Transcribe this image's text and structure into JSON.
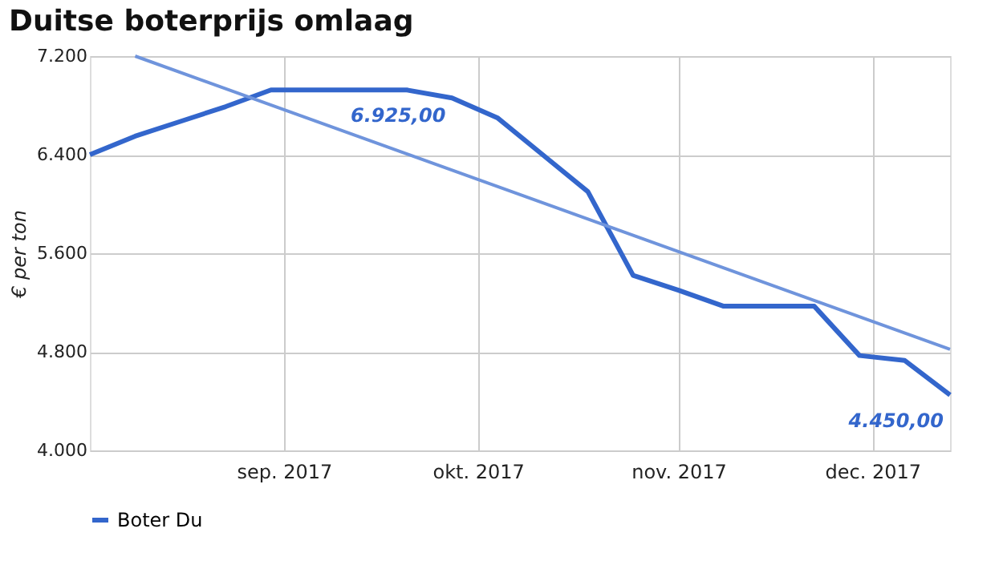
{
  "chart_data": {
    "type": "line",
    "title": "Duitse boterprijs omlaag",
    "ylabel": "€ per ton",
    "x": [
      "2017-08-02",
      "2017-08-09",
      "2017-08-16",
      "2017-08-23",
      "2017-08-30",
      "2017-09-06",
      "2017-09-13",
      "2017-09-20",
      "2017-09-27",
      "2017-10-04",
      "2017-10-11",
      "2017-10-18",
      "2017-10-25",
      "2017-11-01",
      "2017-11-08",
      "2017-11-15",
      "2017-11-22",
      "2017-11-29",
      "2017-12-06",
      "2017-12-13"
    ],
    "series": [
      {
        "name": "Boter Du",
        "color": "#3366cc",
        "values": [
          6400,
          6550,
          6670,
          6790,
          6925,
          6925,
          6925,
          6925,
          6860,
          6700,
          6400,
          6100,
          5420,
          5300,
          5170,
          5170,
          5170,
          4770,
          4730,
          4450
        ]
      },
      {
        "type": "line",
        "color": "#6f94dc",
        "x": [
          "2017-08-09",
          "2017-12-13"
        ],
        "values": [
          7200,
          4820
        ]
      }
    ],
    "annotations": [
      {
        "text": "6.925,00",
        "x": "2017-09-27",
        "y": 6925
      },
      {
        "text": "4.450,00",
        "x": "2017-12-13",
        "y": 4450
      }
    ],
    "xlim": [
      "2017-08-02",
      "2017-12-13"
    ],
    "xticks": [
      {
        "value": "2017-09-01",
        "label": "sep. 2017"
      },
      {
        "value": "2017-10-01",
        "label": "okt. 2017"
      },
      {
        "value": "2017-11-01",
        "label": "nov. 2017"
      },
      {
        "value": "2017-12-01",
        "label": "dec. 2017"
      }
    ],
    "ylim": [
      4000,
      7200
    ],
    "yticks": [
      {
        "value": 4000,
        "label": "4.000"
      },
      {
        "value": 4800,
        "label": "4.800"
      },
      {
        "value": 5600,
        "label": "5.600"
      },
      {
        "value": 6400,
        "label": "6.400"
      },
      {
        "value": 7200,
        "label": "7.200"
      }
    ],
    "grid": true,
    "legend": "bottom",
    "marker": "none",
    "line_style": "solid"
  }
}
